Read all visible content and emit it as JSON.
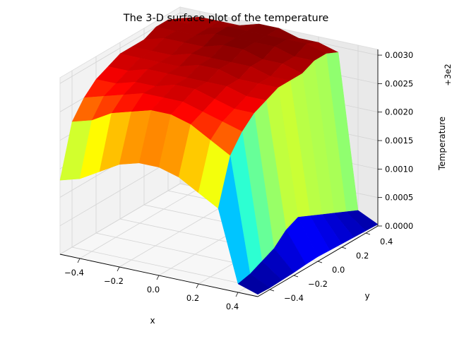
{
  "chart_data": {
    "type": "surface3d",
    "title": "The 3-D surface plot of the temperature",
    "xlabel": "x",
    "ylabel": "y",
    "zlabel": "Temperature",
    "offset_label": "+3e2",
    "xlim": [
      -0.5,
      0.5
    ],
    "ylim": [
      -0.5,
      0.5
    ],
    "zlim": [
      0.0,
      0.0031
    ],
    "x_ticks": [
      "−0.4",
      "−0.2",
      "0.0",
      "0.2",
      "0.4"
    ],
    "y_ticks": [
      "−0.4",
      "−0.2",
      "0.0",
      "0.2",
      "0.4"
    ],
    "z_ticks": [
      "0.0000",
      "0.0005",
      "0.0010",
      "0.0015",
      "0.0020",
      "0.0025",
      "0.0030"
    ],
    "colormap": "jet",
    "grid": true,
    "x": [
      -0.5,
      -0.4,
      -0.3,
      -0.2,
      -0.1,
      0.0,
      0.1,
      0.2,
      0.3,
      0.4,
      0.5
    ],
    "y": [
      -0.5,
      -0.4,
      -0.3,
      -0.2,
      -0.1,
      0.0,
      0.1,
      0.2,
      0.3,
      0.4,
      0.5
    ],
    "z": [
      [
        0.0013,
        0.0014,
        0.0016,
        0.0018,
        0.0019,
        0.0019,
        0.0018,
        0.0016,
        0.0014,
        0.00015,
        4e-05
      ],
      [
        0.0022,
        0.0023,
        0.0025,
        0.0026,
        0.0027,
        0.0027,
        0.0026,
        0.0024,
        0.0022,
        0.0002,
        3e-05
      ],
      [
        0.0025,
        0.0026,
        0.0027,
        0.0028,
        0.0028,
        0.0028,
        0.0027,
        0.0026,
        0.0025,
        0.0003,
        4e-05
      ],
      [
        0.0027,
        0.0027,
        0.0028,
        0.0028,
        0.0029,
        0.0029,
        0.0028,
        0.0027,
        0.0027,
        0.0004,
        5e-05
      ],
      [
        0.0028,
        0.0028,
        0.0029,
        0.0029,
        0.0029,
        0.0029,
        0.0029,
        0.0028,
        0.0028,
        0.0006,
        7e-05
      ],
      [
        0.0029,
        0.0029,
        0.0029,
        0.0029,
        0.003,
        0.003,
        0.0029,
        0.0029,
        0.0029,
        0.0007,
        8e-05
      ],
      [
        0.0029,
        0.0029,
        0.0029,
        0.003,
        0.003,
        0.003,
        0.003,
        0.0029,
        0.0029,
        0.0006,
        7e-05
      ],
      [
        0.0029,
        0.003,
        0.003,
        0.003,
        0.0031,
        0.0031,
        0.003,
        0.003,
        0.0029,
        0.0005,
        6e-05
      ],
      [
        0.003,
        0.003,
        0.003,
        0.0031,
        0.0031,
        0.0031,
        0.0031,
        0.003,
        0.003,
        0.0004,
        5e-05
      ],
      [
        0.003,
        0.003,
        0.003,
        0.0031,
        0.0031,
        0.0031,
        0.0031,
        0.0031,
        0.003,
        0.0003,
        4e-05
      ],
      [
        0.0029,
        0.003,
        0.003,
        0.003,
        0.0031,
        0.0031,
        0.003,
        0.003,
        0.0029,
        0.0002,
        3e-05
      ]
    ]
  }
}
